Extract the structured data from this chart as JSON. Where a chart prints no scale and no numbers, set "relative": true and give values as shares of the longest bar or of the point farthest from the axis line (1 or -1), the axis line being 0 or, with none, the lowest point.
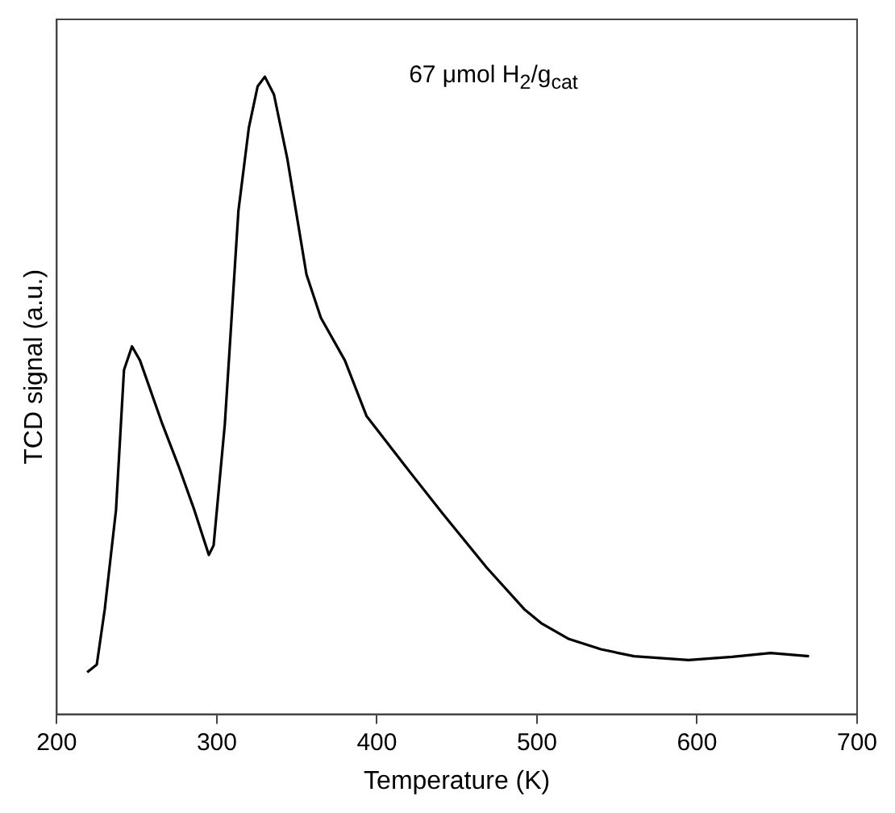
{
  "chart_data": {
    "type": "line",
    "relative": true,
    "xlabel": "Temperature (K)",
    "ylabel": "TCD signal (a.u.)",
    "xlim": [
      200,
      700
    ],
    "xticks": [
      200,
      300,
      400,
      500,
      600,
      700
    ],
    "grid": false,
    "legend": false,
    "marker": "none",
    "line_style": "solid",
    "annotations": [
      "67 μmol H$_{2}$/g$_{cat}$"
    ],
    "series": [
      {
        "color": "#000000",
        "x": [
          219,
          225,
          230,
          237,
          242,
          247,
          252,
          266,
          276,
          286,
          295,
          298,
          305,
          313.5,
          320,
          325.5,
          330,
          335.7,
          344,
          356,
          365,
          380,
          393.5,
          417.5,
          441,
          468.6,
          492,
          502.6,
          520,
          540,
          560.6,
          594.7,
          622,
          646,
          670
        ],
        "values": [
          0.066,
          0.078,
          0.165,
          0.32,
          0.54,
          0.577,
          0.555,
          0.455,
          0.39,
          0.32,
          0.25,
          0.265,
          0.455,
          0.79,
          0.92,
          0.985,
          1,
          0.972,
          0.872,
          0.69,
          0.622,
          0.555,
          0.468,
          0.39,
          0.315,
          0.23,
          0.165,
          0.143,
          0.118,
          0.102,
          0.091,
          0.085,
          0.09,
          0.096,
          0.091
        ]
      }
    ]
  }
}
